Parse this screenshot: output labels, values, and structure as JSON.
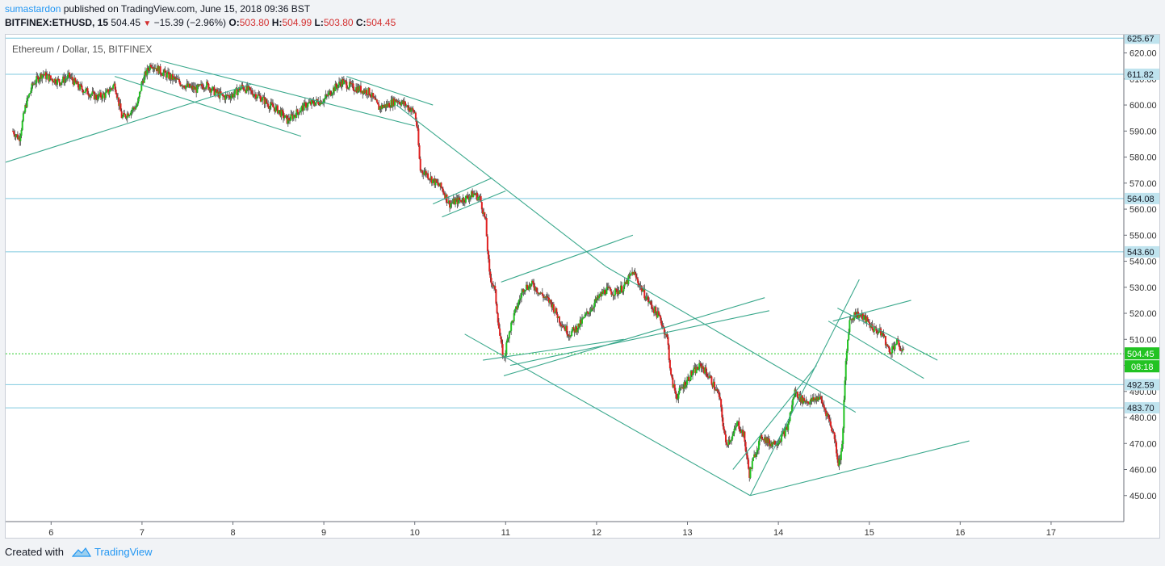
{
  "header": {
    "author": "sumastardon",
    "published_text": "published on TradingView.com, June 15, 2018 09:36 BST",
    "symbol": "BITFINEX:ETHUSD, 15",
    "last_price": "504.45",
    "change": "−15.39 (−2.96%)",
    "open_label": "O:",
    "open_value": "503.80",
    "high_label": "H:",
    "high_value": "504.99",
    "low_label": "L:",
    "low_value": "503.80",
    "close_label": "C:",
    "close_value": "504.45"
  },
  "footer": {
    "created_with": "Created with",
    "brand": "TradingView"
  },
  "colors": {
    "up": "#22c322",
    "down": "#e02020",
    "trendline": "#3aa88c",
    "hline": "#7fc9df",
    "price_line": "#2ecc2e",
    "label_bg": "#bfe3ee",
    "current_bg": "#22c322"
  },
  "chart_data": {
    "type": "candlestick",
    "title": "Ethereum / Dollar, 15, BITFINEX",
    "y_range": [
      440,
      627
    ],
    "x_range": [
      5.5,
      17.8
    ],
    "x_ticks": [
      "6",
      "7",
      "8",
      "9",
      "10",
      "11",
      "12",
      "13",
      "14",
      "15",
      "16",
      "17"
    ],
    "y_ticks": [
      450,
      460,
      470,
      480,
      490,
      500,
      510,
      520,
      530,
      540,
      550,
      560,
      570,
      580,
      590,
      600,
      610,
      620
    ],
    "y_tick_labels": [
      "450.00",
      "460.00",
      "470.00",
      "480.00",
      "490.00",
      "500.00",
      "510.00",
      "520.00",
      "530.00",
      "540.00",
      "550.00",
      "560.00",
      "570.00",
      "580.00",
      "590.00",
      "600.00",
      "610.00",
      "620.00"
    ],
    "horizontal_levels": [
      {
        "value": 625.67,
        "label": "625.67"
      },
      {
        "value": 611.82,
        "label": "611.82"
      },
      {
        "value": 564.08,
        "label": "564.08"
      },
      {
        "value": 543.6,
        "label": "543.60"
      },
      {
        "value": 492.59,
        "label": "492.59"
      },
      {
        "value": 483.7,
        "label": "483.70"
      }
    ],
    "current_price": {
      "value": 504.45,
      "label": "504.45",
      "countdown": "08:18"
    },
    "price_path": [
      [
        5.58,
        590
      ],
      [
        5.65,
        587
      ],
      [
        5.72,
        600
      ],
      [
        5.8,
        608
      ],
      [
        5.9,
        612
      ],
      [
        6.0,
        610
      ],
      [
        6.1,
        609
      ],
      [
        6.2,
        611
      ],
      [
        6.3,
        607
      ],
      [
        6.4,
        605
      ],
      [
        6.5,
        603
      ],
      [
        6.6,
        604
      ],
      [
        6.7,
        608
      ],
      [
        6.78,
        595
      ],
      [
        6.85,
        597
      ],
      [
        6.95,
        600
      ],
      [
        7.0,
        609
      ],
      [
        7.1,
        616
      ],
      [
        7.2,
        613
      ],
      [
        7.3,
        611
      ],
      [
        7.4,
        609
      ],
      [
        7.5,
        607
      ],
      [
        7.6,
        606
      ],
      [
        7.7,
        608
      ],
      [
        7.8,
        605
      ],
      [
        7.9,
        603
      ],
      [
        8.0,
        604
      ],
      [
        8.1,
        607
      ],
      [
        8.2,
        605
      ],
      [
        8.3,
        603
      ],
      [
        8.4,
        600
      ],
      [
        8.5,
        598
      ],
      [
        8.6,
        594
      ],
      [
        8.7,
        597
      ],
      [
        8.8,
        600
      ],
      [
        8.9,
        601
      ],
      [
        9.0,
        602
      ],
      [
        9.1,
        606
      ],
      [
        9.2,
        609
      ],
      [
        9.3,
        607
      ],
      [
        9.4,
        606
      ],
      [
        9.5,
        605
      ],
      [
        9.6,
        599
      ],
      [
        9.7,
        600
      ],
      [
        9.8,
        602
      ],
      [
        9.9,
        600
      ],
      [
        10.0,
        597
      ],
      [
        10.03,
        590
      ],
      [
        10.06,
        575
      ],
      [
        10.12,
        574
      ],
      [
        10.2,
        571
      ],
      [
        10.3,
        568
      ],
      [
        10.38,
        562
      ],
      [
        10.45,
        563
      ],
      [
        10.55,
        564
      ],
      [
        10.65,
        566
      ],
      [
        10.72,
        564
      ],
      [
        10.78,
        555
      ],
      [
        10.82,
        535
      ],
      [
        10.88,
        529
      ],
      [
        10.94,
        510
      ],
      [
        10.98,
        502
      ],
      [
        11.03,
        512
      ],
      [
        11.1,
        520
      ],
      [
        11.2,
        530
      ],
      [
        11.3,
        531
      ],
      [
        11.4,
        527
      ],
      [
        11.5,
        524
      ],
      [
        11.6,
        517
      ],
      [
        11.7,
        512
      ],
      [
        11.8,
        515
      ],
      [
        11.9,
        520
      ],
      [
        12.0,
        525
      ],
      [
        12.1,
        529
      ],
      [
        12.2,
        528
      ],
      [
        12.3,
        530
      ],
      [
        12.4,
        536
      ],
      [
        12.5,
        529
      ],
      [
        12.6,
        523
      ],
      [
        12.7,
        518
      ],
      [
        12.78,
        510
      ],
      [
        12.82,
        495
      ],
      [
        12.88,
        488
      ],
      [
        12.95,
        492
      ],
      [
        13.05,
        497
      ],
      [
        13.15,
        500
      ],
      [
        13.25,
        495
      ],
      [
        13.35,
        488
      ],
      [
        13.42,
        470
      ],
      [
        13.5,
        473
      ],
      [
        13.55,
        478
      ],
      [
        13.62,
        473
      ],
      [
        13.68,
        458
      ],
      [
        13.75,
        467
      ],
      [
        13.82,
        473
      ],
      [
        13.9,
        470
      ],
      [
        14.0,
        471
      ],
      [
        14.1,
        476
      ],
      [
        14.18,
        490
      ],
      [
        14.25,
        487
      ],
      [
        14.35,
        486
      ],
      [
        14.45,
        488
      ],
      [
        14.55,
        480
      ],
      [
        14.62,
        472
      ],
      [
        14.66,
        462
      ],
      [
        14.7,
        468
      ],
      [
        14.74,
        500
      ],
      [
        14.78,
        517
      ],
      [
        14.85,
        520
      ],
      [
        14.95,
        518
      ],
      [
        15.05,
        514
      ],
      [
        15.15,
        512
      ],
      [
        15.22,
        505
      ],
      [
        15.3,
        509
      ],
      [
        15.38,
        504.45
      ]
    ],
    "trendlines": [
      [
        [
          5.5,
          578
        ],
        [
          8.2,
          608
        ]
      ],
      [
        [
          6.7,
          611
        ],
        [
          8.75,
          588
        ]
      ],
      [
        [
          7.2,
          617
        ],
        [
          10.0,
          592
        ]
      ],
      [
        [
          9.25,
          611
        ],
        [
          10.2,
          600
        ]
      ],
      [
        [
          9.8,
          600
        ],
        [
          12.1,
          538
        ]
      ],
      [
        [
          12.1,
          538
        ],
        [
          14.85,
          482
        ]
      ],
      [
        [
          10.2,
          562
        ],
        [
          10.85,
          572
        ]
      ],
      [
        [
          10.3,
          557
        ],
        [
          11.0,
          567
        ]
      ],
      [
        [
          10.95,
          532
        ],
        [
          12.4,
          550
        ]
      ],
      [
        [
          10.75,
          502
        ],
        [
          12.3,
          510
        ]
      ],
      [
        [
          10.55,
          512
        ],
        [
          13.69,
          450
        ]
      ],
      [
        [
          10.98,
          496
        ],
        [
          13.85,
          526
        ]
      ],
      [
        [
          11.05,
          500
        ],
        [
          13.9,
          521
        ]
      ],
      [
        [
          13.69,
          450
        ],
        [
          16.1,
          471
        ]
      ],
      [
        [
          13.5,
          460
        ],
        [
          14.42,
          500
        ]
      ],
      [
        [
          13.69,
          450
        ],
        [
          14.89,
          533
        ]
      ],
      [
        [
          14.6,
          517
        ],
        [
          15.46,
          525
        ]
      ],
      [
        [
          14.65,
          522
        ],
        [
          15.75,
          502
        ]
      ],
      [
        [
          14.55,
          517
        ],
        [
          15.6,
          495
        ]
      ]
    ]
  }
}
